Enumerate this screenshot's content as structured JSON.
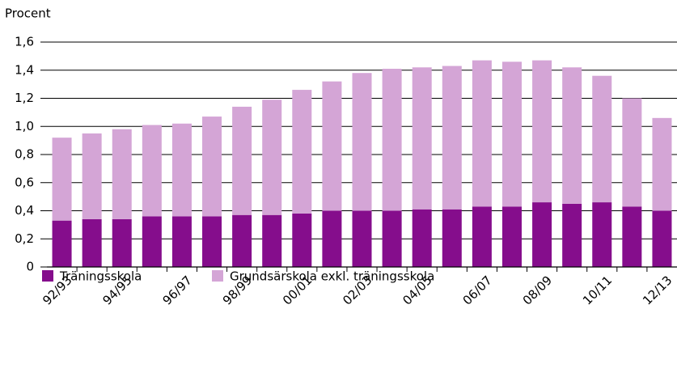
{
  "chart_data": {
    "type": "bar",
    "stacked": true,
    "y_label": "Procent",
    "categories": [
      "92/93",
      null,
      "94/95",
      null,
      "96/97",
      null,
      "98/99",
      null,
      "00/01",
      null,
      "02/03",
      null,
      "04/05",
      null,
      "06/07",
      null,
      "08/09",
      null,
      "10/11",
      null,
      "12/13"
    ],
    "series": [
      {
        "name": "Träningsskola",
        "color": "#850d8c",
        "values": [
          0.33,
          0.34,
          0.34,
          0.36,
          0.36,
          0.36,
          0.37,
          0.37,
          0.38,
          0.4,
          0.4,
          0.4,
          0.41,
          0.41,
          0.43,
          0.43,
          0.46,
          0.45,
          0.46,
          0.43,
          0.4
        ]
      },
      {
        "name": "Grundsärskola exkl. träningsskola",
        "color": "#d4a5d6",
        "values": [
          0.59,
          0.61,
          0.64,
          0.65,
          0.66,
          0.71,
          0.77,
          0.82,
          0.88,
          0.92,
          0.98,
          1.01,
          1.01,
          1.02,
          1.04,
          1.03,
          1.01,
          0.97,
          0.9,
          0.77,
          0.66
        ]
      }
    ],
    "ylim": [
      0,
      1.6
    ],
    "yticks": [
      0,
      {
        "value": 0.2,
        "label": "0,2"
      },
      {
        "value": 0.4,
        "label": "0,4"
      },
      {
        "value": 0.6,
        "label": "0,6"
      },
      {
        "value": 0.8,
        "label": "0,8"
      },
      {
        "value": 1.0,
        "label": "1,0"
      },
      {
        "value": 1.2,
        "label": "1,2"
      },
      {
        "value": 1.4,
        "label": "1,4"
      },
      {
        "value": 1.6,
        "label": "1,6"
      }
    ],
    "grid": true,
    "legend": "bottom"
  }
}
